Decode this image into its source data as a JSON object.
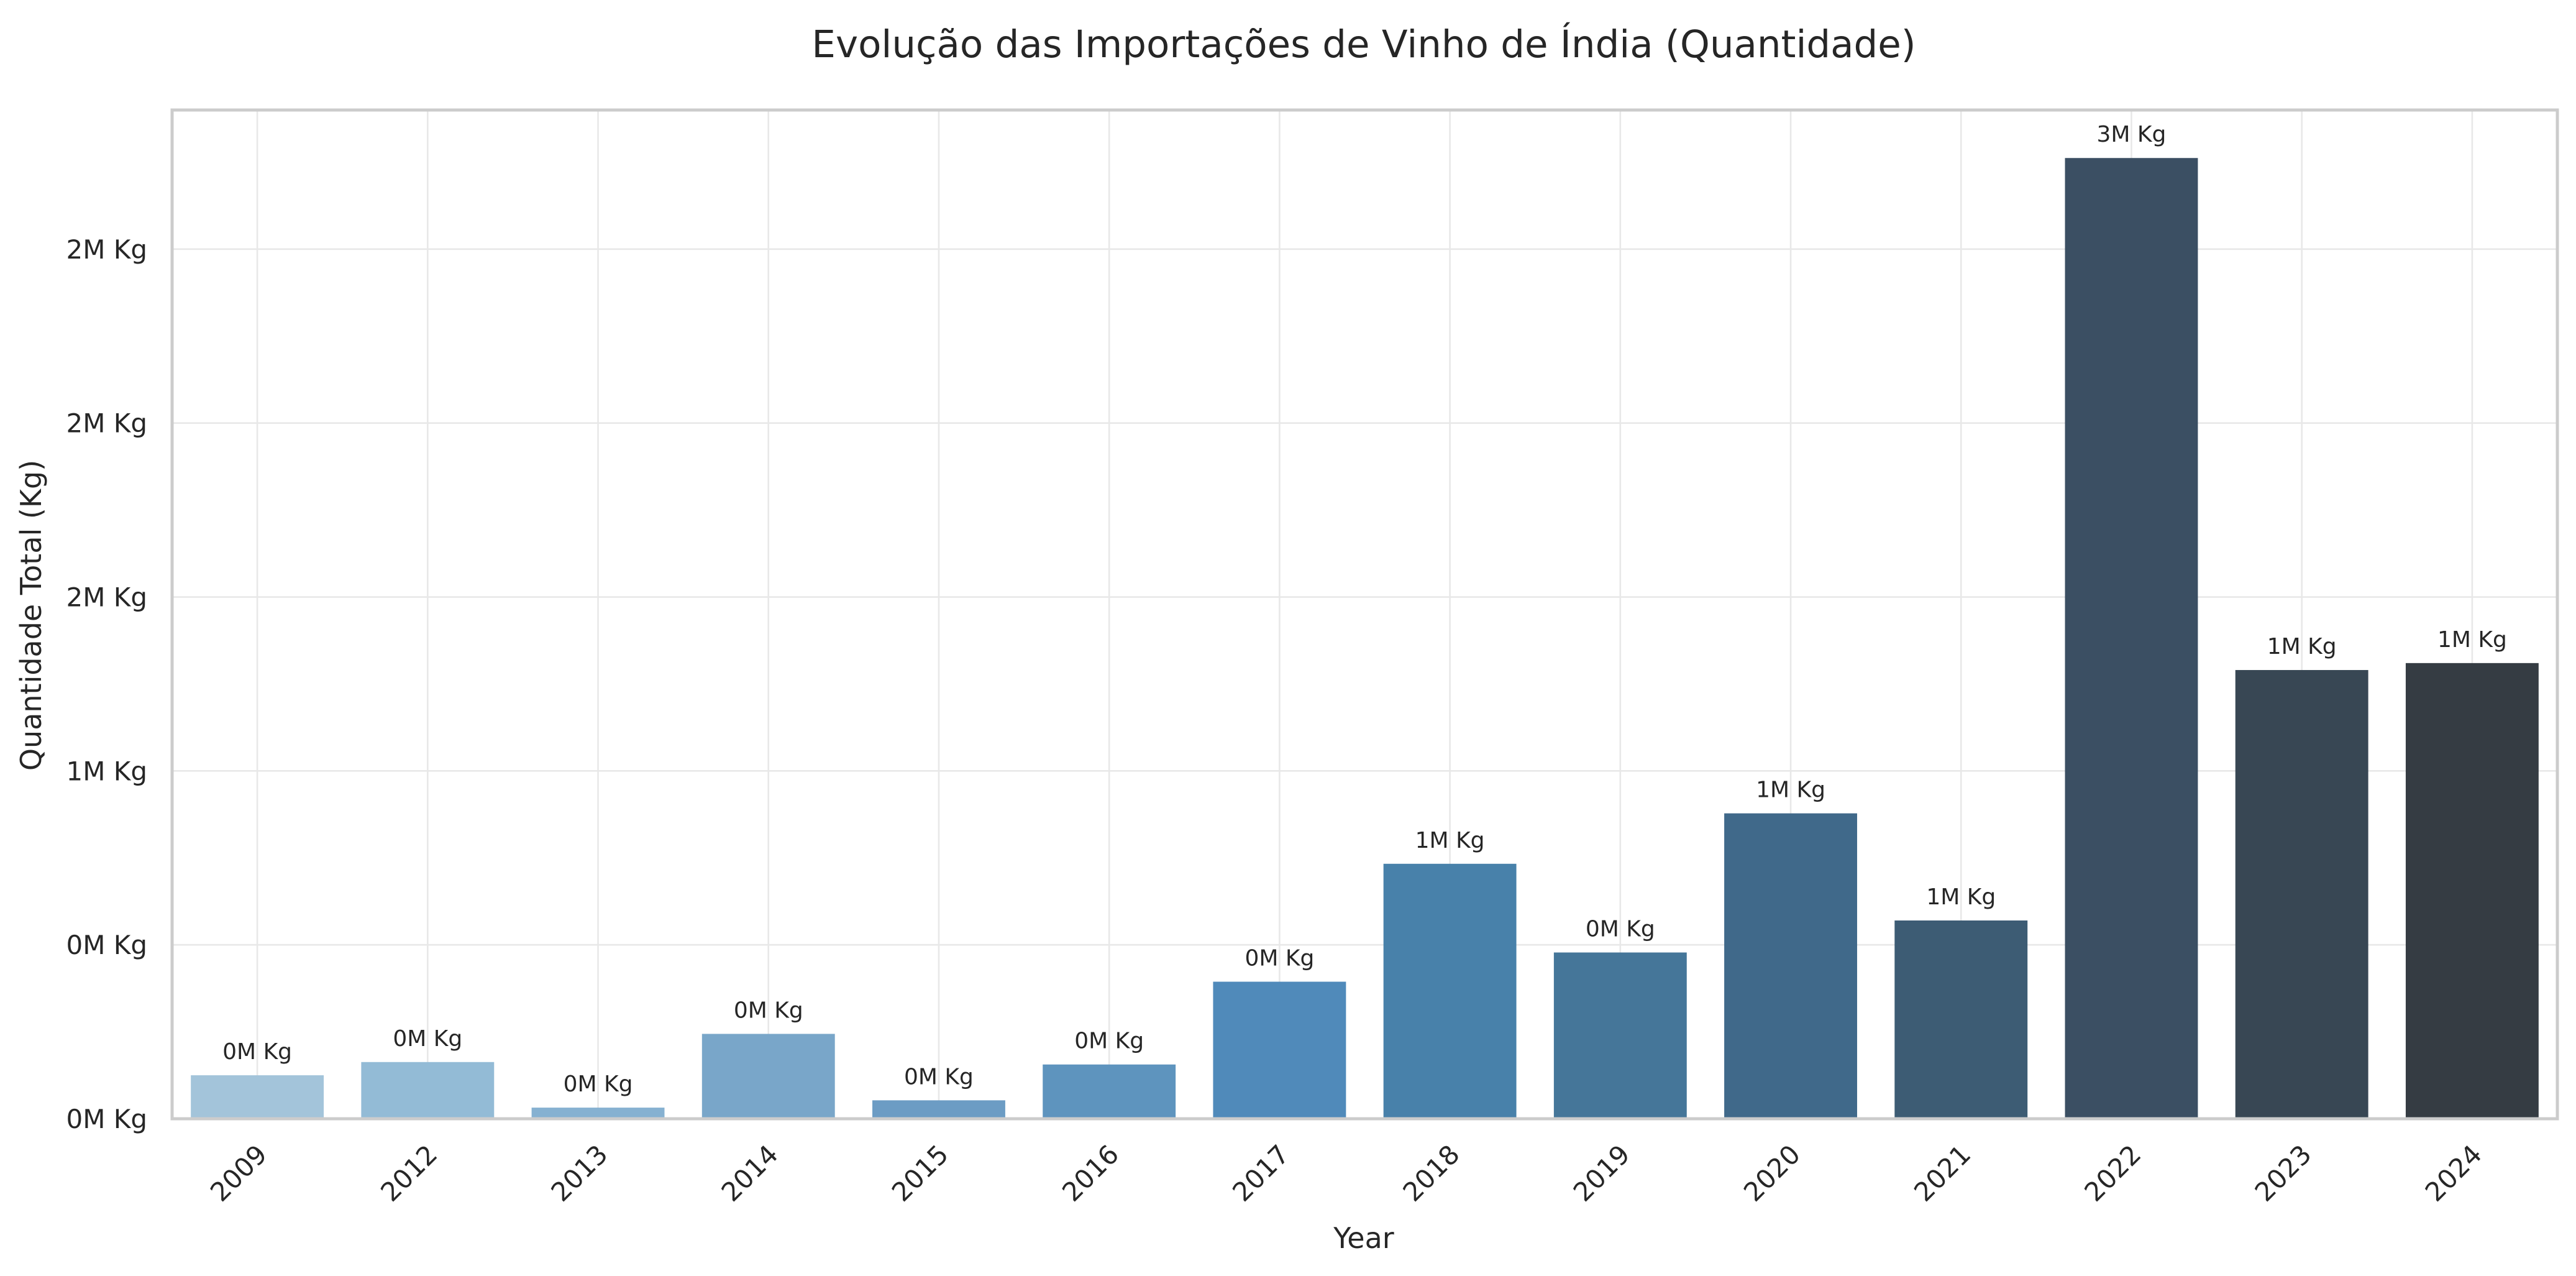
{
  "chart_data": {
    "type": "bar",
    "title": "Evolução das Importações de Vinho de Índia (Quantidade)",
    "xlabel": "Year",
    "ylabel": "Quantidade Total (Kg)",
    "categories": [
      "2009",
      "2012",
      "2013",
      "2014",
      "2015",
      "2016",
      "2017",
      "2018",
      "2019",
      "2020",
      "2021",
      "2022",
      "2023",
      "2024"
    ],
    "values": [
      125000,
      163000,
      32000,
      244000,
      53000,
      156000,
      394000,
      733000,
      478000,
      878000,
      570000,
      2762000,
      1290000,
      1310000
    ],
    "data_labels": [
      "0M Kg",
      "0M Kg",
      "0M Kg",
      "0M Kg",
      "0M Kg",
      "0M Kg",
      "0M Kg",
      "1M Kg",
      "0M Kg",
      "1M Kg",
      "1M Kg",
      "3M Kg",
      "1M Kg",
      "1M Kg"
    ],
    "bar_colors": [
      "#a3c4da",
      "#93bbd6",
      "#86b1d1",
      "#79a6c9",
      "#6c9cc4",
      "#5e94be",
      "#508aba",
      "#4881aa",
      "#457699",
      "#40698a",
      "#3d5c74",
      "#3b4f63",
      "#384754",
      "#353c43"
    ],
    "y_ticks": [
      {
        "value": 0,
        "label": "0M Kg"
      },
      {
        "value": 500000,
        "label": "0M Kg"
      },
      {
        "value": 1000000,
        "label": "1M Kg"
      },
      {
        "value": 1500000,
        "label": "2M Kg"
      },
      {
        "value": 2000000,
        "label": "2M Kg"
      },
      {
        "value": 2500000,
        "label": "2M Kg"
      }
    ],
    "ylim": [
      0,
      2900000
    ],
    "grid": true,
    "legend": "none"
  }
}
